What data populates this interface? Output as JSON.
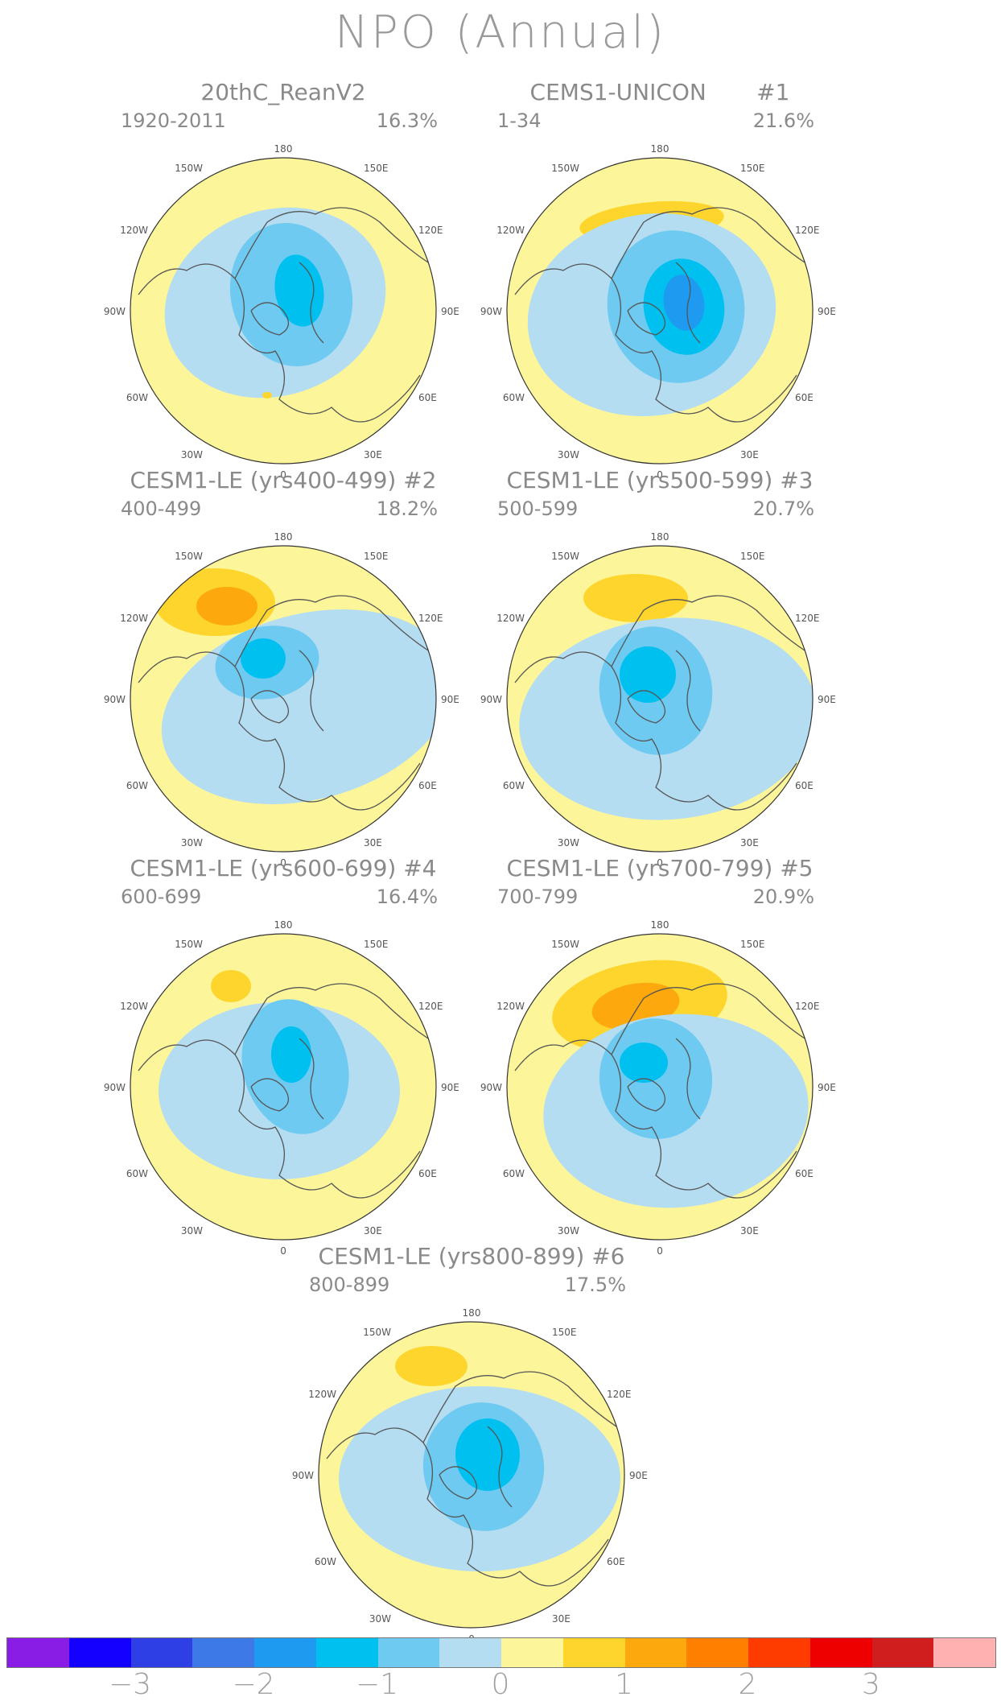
{
  "title": "NPO (Annual)",
  "map_labels": {
    "top": "180",
    "bottom": "0",
    "upper_left": "150W",
    "upper_right": "150E",
    "mid_upper_left": "120W",
    "mid_upper_right": "120E",
    "left": "90W",
    "right": "90E",
    "mid_lower_left": "60W",
    "mid_lower_right": "60E",
    "lower_left": "30W",
    "lower_right": "30E"
  },
  "panels": [
    {
      "title": "20thC_ReanV2",
      "range": "1920-2011",
      "pct": "16.3%"
    },
    {
      "title": "CEMS1-UNICON       #1",
      "range": "1-34",
      "pct": "21.6%"
    },
    {
      "title": "CESM1-LE (yrs400-499) #2",
      "range": "400-499",
      "pct": "18.2%"
    },
    {
      "title": "CESM1-LE (yrs500-599) #3",
      "range": "500-599",
      "pct": "20.7%"
    },
    {
      "title": "CESM1-LE (yrs600-699) #4",
      "range": "600-699",
      "pct": "16.4%"
    },
    {
      "title": "CESM1-LE (yrs700-799) #5",
      "range": "700-799",
      "pct": "20.9%"
    },
    {
      "title": "CESM1-LE (yrs800-899) #6",
      "range": "800-899",
      "pct": "17.5%"
    }
  ],
  "colorbar": {
    "colors": [
      "#8a1de5",
      "#1400ff",
      "#2e3fe6",
      "#3d7ae8",
      "#1e9bf0",
      "#00c0f0",
      "#6ecaf0",
      "#b4ddf2",
      "#fdf59a",
      "#fdd52c",
      "#fda80c",
      "#ff7f00",
      "#ff3c00",
      "#ee0000",
      "#d01e1e",
      "#ffb0b0"
    ],
    "ticks": [
      "−3",
      "−2",
      "−1",
      "0",
      "1",
      "2",
      "3"
    ],
    "tick_values": [
      -3,
      -2,
      -1,
      0,
      1,
      2,
      3
    ]
  },
  "fill_colors": {
    "background": "#fdf59a",
    "neg1": "#b4ddf2",
    "neg2": "#6ecaf0",
    "neg3": "#00c0f0",
    "neg4": "#1e9bf0",
    "pos1": "#fdd52c",
    "pos2": "#fda80c"
  }
}
